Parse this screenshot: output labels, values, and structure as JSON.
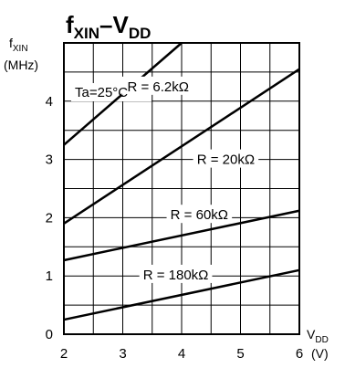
{
  "chart_data": {
    "type": "line",
    "title_main": "f",
    "title_sub1": "XIN",
    "title_dash": "–V",
    "title_sub2": "DD",
    "ylabel_main": "f",
    "ylabel_sub": "XIN",
    "ylabel_unit": "(MHz)",
    "xlabel_main": "V",
    "xlabel_sub": "DD",
    "xlabel_unit": "(V)",
    "condition": "Ta=25°C",
    "xlim": [
      2,
      6
    ],
    "ylim": [
      0,
      5
    ],
    "x_ticks": [
      2,
      3,
      4,
      5,
      6
    ],
    "y_ticks": [
      0,
      1,
      2,
      3,
      4
    ],
    "grid_x": [
      2.5,
      3,
      3.5,
      4,
      4.5,
      5,
      5.5
    ],
    "grid_y": [
      0.5,
      1,
      1.5,
      2,
      2.5,
      3,
      3.5,
      4,
      4.5
    ],
    "series": [
      {
        "name": "R = 6.2kΩ",
        "x": [
          2,
          4
        ],
        "y": [
          3.25,
          5.0
        ],
        "label_x": 3.6,
        "label_y": 4.25
      },
      {
        "name": "R = 20kΩ",
        "x": [
          2,
          6
        ],
        "y": [
          1.9,
          4.55
        ],
        "label_x": 4.75,
        "label_y": 3.0
      },
      {
        "name": "R = 60kΩ",
        "x": [
          2,
          6
        ],
        "y": [
          1.27,
          2.12
        ],
        "label_x": 4.3,
        "label_y": 2.05
      },
      {
        "name": "R = 180kΩ",
        "x": [
          2,
          6
        ],
        "y": [
          0.25,
          1.1
        ],
        "label_x": 3.9,
        "label_y": 1.02
      }
    ]
  }
}
